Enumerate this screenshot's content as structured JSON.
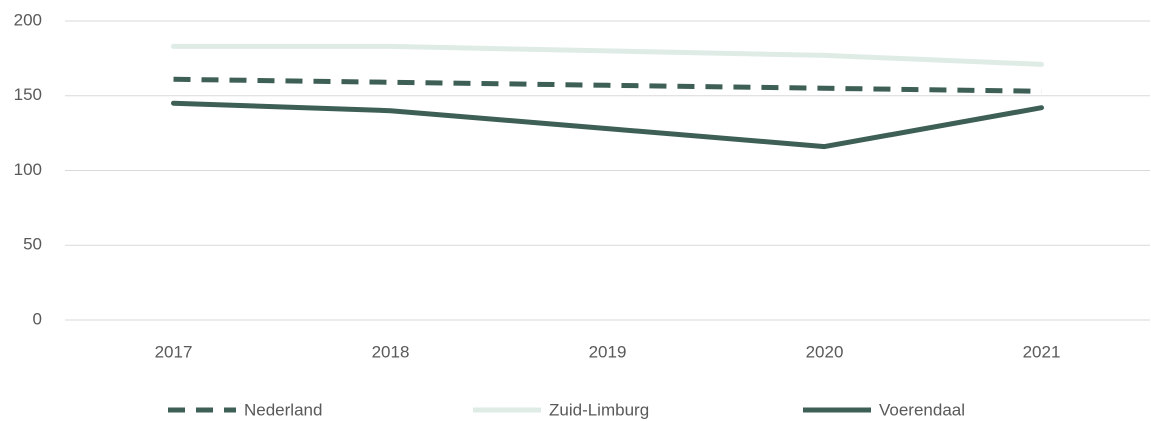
{
  "chart_data": {
    "type": "line",
    "categories": [
      "2017",
      "2018",
      "2019",
      "2020",
      "2021"
    ],
    "series": [
      {
        "name": "Nederland",
        "color": "#3d5f55",
        "dashed": true,
        "values": [
          161,
          159,
          157,
          155,
          153
        ]
      },
      {
        "name": "Zuid-Limburg",
        "color": "#dfece6",
        "dashed": false,
        "values": [
          183,
          183,
          180,
          177,
          171
        ]
      },
      {
        "name": "Voerendaal",
        "color": "#3d5f55",
        "dashed": false,
        "values": [
          145,
          140,
          128,
          116,
          142
        ]
      }
    ],
    "ylim": [
      0,
      200
    ],
    "yticks": [
      0,
      50,
      100,
      150,
      200
    ],
    "grid": true,
    "legend": "bottom"
  }
}
